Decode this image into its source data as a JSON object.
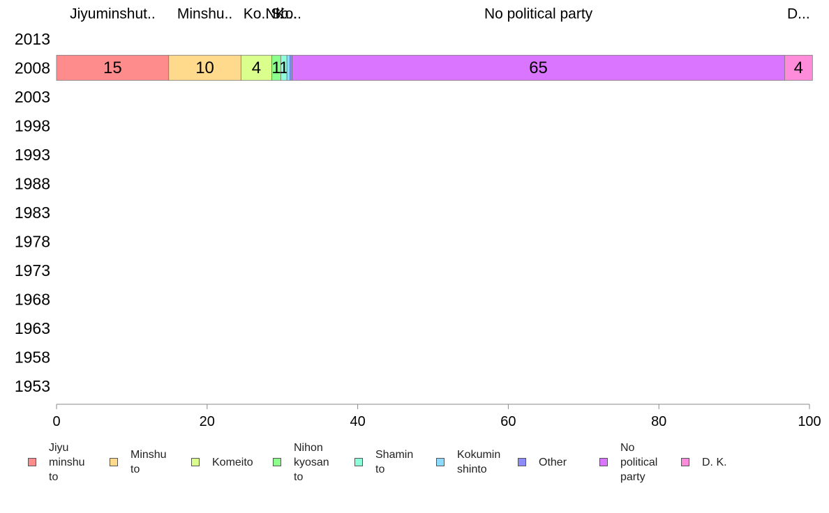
{
  "chart_data": {
    "type": "bar",
    "orientation": "horizontal",
    "stacked": true,
    "categories": [
      "2013",
      "2008",
      "2003",
      "1998",
      "1993",
      "1988",
      "1983",
      "1978",
      "1973",
      "1968",
      "1963",
      "1958",
      "1953"
    ],
    "top_labels": [
      "Jiyuminshut..",
      "Minshu..",
      "Ko..",
      "Ni..",
      "Sh..",
      "Ko..",
      "",
      "No political party",
      "D..."
    ],
    "series": [
      {
        "name": "Jiyu\nminshu\nto",
        "color": "#FF8C8C",
        "values": [
          null,
          14.9,
          null,
          null,
          null,
          null,
          null,
          null,
          null,
          null,
          null,
          null,
          null
        ],
        "labels": [
          "",
          "15",
          "",
          "",
          "",
          "",
          "",
          "",
          "",
          "",
          "",
          "",
          ""
        ]
      },
      {
        "name": "Minshu\nto",
        "color": "#FFDA8C",
        "values": [
          null,
          9.6,
          null,
          null,
          null,
          null,
          null,
          null,
          null,
          null,
          null,
          null,
          null
        ],
        "labels": [
          "",
          "10",
          "",
          "",
          "",
          "",
          "",
          "",
          "",
          "",
          "",
          "",
          ""
        ]
      },
      {
        "name": "Komeito",
        "color": "#DAFF8C",
        "values": [
          null,
          4.1,
          null,
          null,
          null,
          null,
          null,
          null,
          null,
          null,
          null,
          null,
          null
        ],
        "labels": [
          "",
          "4",
          "",
          "",
          "",
          "",
          "",
          "",
          "",
          "",
          "",
          "",
          ""
        ]
      },
      {
        "name": "Nihon\nkyosan\nto",
        "color": "#8CFF8C",
        "values": [
          null,
          1.2,
          null,
          null,
          null,
          null,
          null,
          null,
          null,
          null,
          null,
          null,
          null
        ],
        "labels": [
          "",
          "1",
          "",
          "",
          "",
          "",
          "",
          "",
          "",
          "",
          "",
          "",
          ""
        ]
      },
      {
        "name": "Shamin\nto",
        "color": "#8CFFDA",
        "values": [
          null,
          0.8,
          null,
          null,
          null,
          null,
          null,
          null,
          null,
          null,
          null,
          null,
          null
        ],
        "labels": [
          "",
          "1",
          "",
          "",
          "",
          "",
          "",
          "",
          "",
          "",
          "",
          "",
          ""
        ]
      },
      {
        "name": "Kokumin\nshinto",
        "color": "#8CDAFF",
        "values": [
          null,
          0.4,
          null,
          null,
          null,
          null,
          null,
          null,
          null,
          null,
          null,
          null,
          null
        ],
        "labels": [
          "",
          "",
          "",
          "",
          "",
          "",
          "",
          "",
          "",
          "",
          "",
          "",
          ""
        ]
      },
      {
        "name": "Other",
        "color": "#8C8CFF",
        "values": [
          null,
          0.3,
          null,
          null,
          null,
          null,
          null,
          null,
          null,
          null,
          null,
          null,
          null
        ],
        "labels": [
          "",
          "",
          "",
          "",
          "",
          "",
          "",
          "",
          "",
          "",
          "",
          "",
          ""
        ]
      },
      {
        "name": "No\npolitical\nparty",
        "color": "#DA75FF",
        "values": [
          null,
          65.4,
          null,
          null,
          null,
          null,
          null,
          null,
          null,
          null,
          null,
          null,
          null
        ],
        "labels": [
          "",
          "65",
          "",
          "",
          "",
          "",
          "",
          "",
          "",
          "",
          "",
          "",
          ""
        ]
      },
      {
        "name": "D. K.",
        "color": "#FF8CDA",
        "values": [
          null,
          3.7,
          null,
          null,
          null,
          null,
          null,
          null,
          null,
          null,
          null,
          null,
          null
        ],
        "labels": [
          "",
          "4",
          "",
          "",
          "",
          "",
          "",
          "",
          "",
          "",
          "",
          "",
          ""
        ]
      }
    ],
    "xlim": [
      0,
      100
    ],
    "xticks": [
      "0",
      "20",
      "40",
      "60",
      "80",
      "100"
    ],
    "title": "",
    "xlabel": "",
    "ylabel": "",
    "grid": false,
    "legend_position": "bottom"
  }
}
